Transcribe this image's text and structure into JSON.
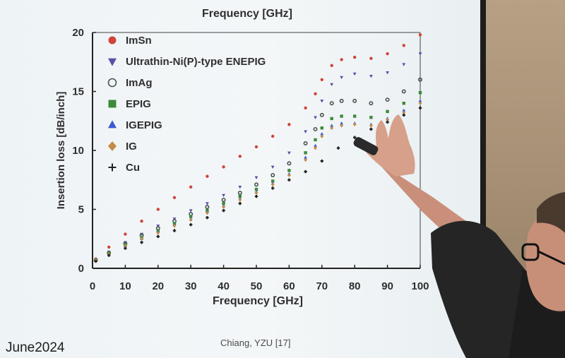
{
  "chart_data": {
    "type": "scatter",
    "title": "Frequency [GHz]",
    "xlabel": "Frequency [GHz]",
    "ylabel": "Insertion loss [dB/inch]",
    "xlim": [
      0,
      100
    ],
    "ylim": [
      0,
      20
    ],
    "xticks": [
      0,
      10,
      20,
      30,
      40,
      50,
      60,
      70,
      80,
      90,
      100
    ],
    "yticks": [
      0,
      5,
      10,
      15,
      20
    ],
    "legend_position": "top-left",
    "series": [
      {
        "name": "ImSn",
        "marker": "circle",
        "color": "#d0443a",
        "points": [
          [
            1,
            0.8
          ],
          [
            5,
            1.8
          ],
          [
            10,
            2.9
          ],
          [
            15,
            4.0
          ],
          [
            20,
            5.0
          ],
          [
            25,
            6.0
          ],
          [
            30,
            6.9
          ],
          [
            35,
            7.8
          ],
          [
            40,
            8.6
          ],
          [
            45,
            9.5
          ],
          [
            50,
            10.3
          ],
          [
            55,
            11.2
          ],
          [
            60,
            12.2
          ],
          [
            65,
            13.6
          ],
          [
            68,
            14.8
          ],
          [
            70,
            16.0
          ],
          [
            73,
            17.2
          ],
          [
            76,
            17.7
          ],
          [
            80,
            17.9
          ],
          [
            85,
            17.8
          ],
          [
            90,
            18.2
          ],
          [
            95,
            18.9
          ],
          [
            100,
            19.8
          ]
        ]
      },
      {
        "name": "Ultrathin-Ni(P)-type ENEPIG",
        "marker": "triangle-down",
        "color": "#5b4fa8",
        "points": [
          [
            1,
            0.7
          ],
          [
            5,
            1.4
          ],
          [
            10,
            2.2
          ],
          [
            15,
            2.9
          ],
          [
            20,
            3.6
          ],
          [
            25,
            4.2
          ],
          [
            30,
            4.9
          ],
          [
            35,
            5.5
          ],
          [
            40,
            6.2
          ],
          [
            45,
            6.9
          ],
          [
            50,
            7.7
          ],
          [
            55,
            8.6
          ],
          [
            60,
            9.8
          ],
          [
            65,
            11.6
          ],
          [
            68,
            12.8
          ],
          [
            70,
            14.2
          ],
          [
            73,
            15.6
          ],
          [
            76,
            16.2
          ],
          [
            80,
            16.5
          ],
          [
            85,
            16.3
          ],
          [
            90,
            16.6
          ],
          [
            95,
            17.3
          ],
          [
            100,
            18.2
          ]
        ]
      },
      {
        "name": "ImAg",
        "marker": "circle-open",
        "color": "#4a5450",
        "points": [
          [
            1,
            0.7
          ],
          [
            5,
            1.3
          ],
          [
            10,
            2.1
          ],
          [
            15,
            2.8
          ],
          [
            20,
            3.4
          ],
          [
            25,
            4.0
          ],
          [
            30,
            4.6
          ],
          [
            35,
            5.2
          ],
          [
            40,
            5.8
          ],
          [
            45,
            6.4
          ],
          [
            50,
            7.1
          ],
          [
            55,
            7.9
          ],
          [
            60,
            8.9
          ],
          [
            65,
            10.6
          ],
          [
            68,
            11.8
          ],
          [
            70,
            13.0
          ],
          [
            73,
            14.0
          ],
          [
            76,
            14.2
          ],
          [
            80,
            14.2
          ],
          [
            85,
            14.0
          ],
          [
            90,
            14.3
          ],
          [
            95,
            15.0
          ],
          [
            100,
            16.0
          ]
        ]
      },
      {
        "name": "EPIG",
        "marker": "square",
        "color": "#3d8a3a",
        "points": [
          [
            1,
            0.7
          ],
          [
            5,
            1.3
          ],
          [
            10,
            2.0
          ],
          [
            15,
            2.6
          ],
          [
            20,
            3.2
          ],
          [
            25,
            3.8
          ],
          [
            30,
            4.4
          ],
          [
            35,
            4.9
          ],
          [
            40,
            5.5
          ],
          [
            45,
            6.1
          ],
          [
            50,
            6.7
          ],
          [
            55,
            7.4
          ],
          [
            60,
            8.3
          ],
          [
            65,
            9.8
          ],
          [
            68,
            10.9
          ],
          [
            70,
            11.9
          ],
          [
            73,
            12.7
          ],
          [
            76,
            12.9
          ],
          [
            80,
            12.9
          ],
          [
            85,
            12.8
          ],
          [
            90,
            13.3
          ],
          [
            95,
            14.0
          ],
          [
            100,
            14.9
          ]
        ]
      },
      {
        "name": "IGEPIG",
        "marker": "triangle-up",
        "color": "#3d59d6",
        "points": [
          [
            1,
            0.7
          ],
          [
            5,
            1.2
          ],
          [
            10,
            1.9
          ],
          [
            15,
            2.5
          ],
          [
            20,
            3.1
          ],
          [
            25,
            3.7
          ],
          [
            30,
            4.2
          ],
          [
            35,
            4.8
          ],
          [
            40,
            5.3
          ],
          [
            45,
            5.9
          ],
          [
            50,
            6.5
          ],
          [
            55,
            7.2
          ],
          [
            60,
            8.0
          ],
          [
            65,
            9.4
          ],
          [
            68,
            10.4
          ],
          [
            70,
            11.4
          ],
          [
            73,
            12.1
          ],
          [
            76,
            12.3
          ],
          [
            80,
            12.3
          ],
          [
            85,
            12.2
          ],
          [
            90,
            12.7
          ],
          [
            95,
            13.4
          ],
          [
            100,
            14.2
          ]
        ]
      },
      {
        "name": "IG",
        "marker": "diamond",
        "color": "#c48c45",
        "points": [
          [
            1,
            0.7
          ],
          [
            5,
            1.2
          ],
          [
            10,
            1.9
          ],
          [
            15,
            2.5
          ],
          [
            20,
            3.0
          ],
          [
            25,
            3.6
          ],
          [
            30,
            4.1
          ],
          [
            35,
            4.7
          ],
          [
            40,
            5.2
          ],
          [
            45,
            5.8
          ],
          [
            50,
            6.4
          ],
          [
            55,
            7.1
          ],
          [
            60,
            7.9
          ],
          [
            65,
            9.2
          ],
          [
            68,
            10.2
          ],
          [
            70,
            11.2
          ],
          [
            73,
            11.9
          ],
          [
            76,
            12.1
          ],
          [
            80,
            12.2
          ],
          [
            85,
            12.1
          ],
          [
            90,
            12.6
          ],
          [
            95,
            13.2
          ],
          [
            100,
            14.0
          ]
        ]
      },
      {
        "name": "Cu",
        "marker": "plus",
        "color": "#222222",
        "points": [
          [
            1,
            0.6
          ],
          [
            5,
            1.1
          ],
          [
            10,
            1.7
          ],
          [
            15,
            2.2
          ],
          [
            20,
            2.7
          ],
          [
            25,
            3.2
          ],
          [
            30,
            3.7
          ],
          [
            35,
            4.3
          ],
          [
            40,
            4.9
          ],
          [
            45,
            5.5
          ],
          [
            50,
            6.1
          ],
          [
            55,
            6.8
          ],
          [
            60,
            7.5
          ],
          [
            65,
            8.2
          ],
          [
            70,
            9.1
          ],
          [
            75,
            10.2
          ],
          [
            80,
            11.1
          ],
          [
            85,
            11.8
          ],
          [
            90,
            12.4
          ],
          [
            95,
            13.0
          ],
          [
            100,
            13.6
          ]
        ]
      }
    ]
  },
  "credit": "Chiang, YZU [17]",
  "date_stamp": "June2024"
}
